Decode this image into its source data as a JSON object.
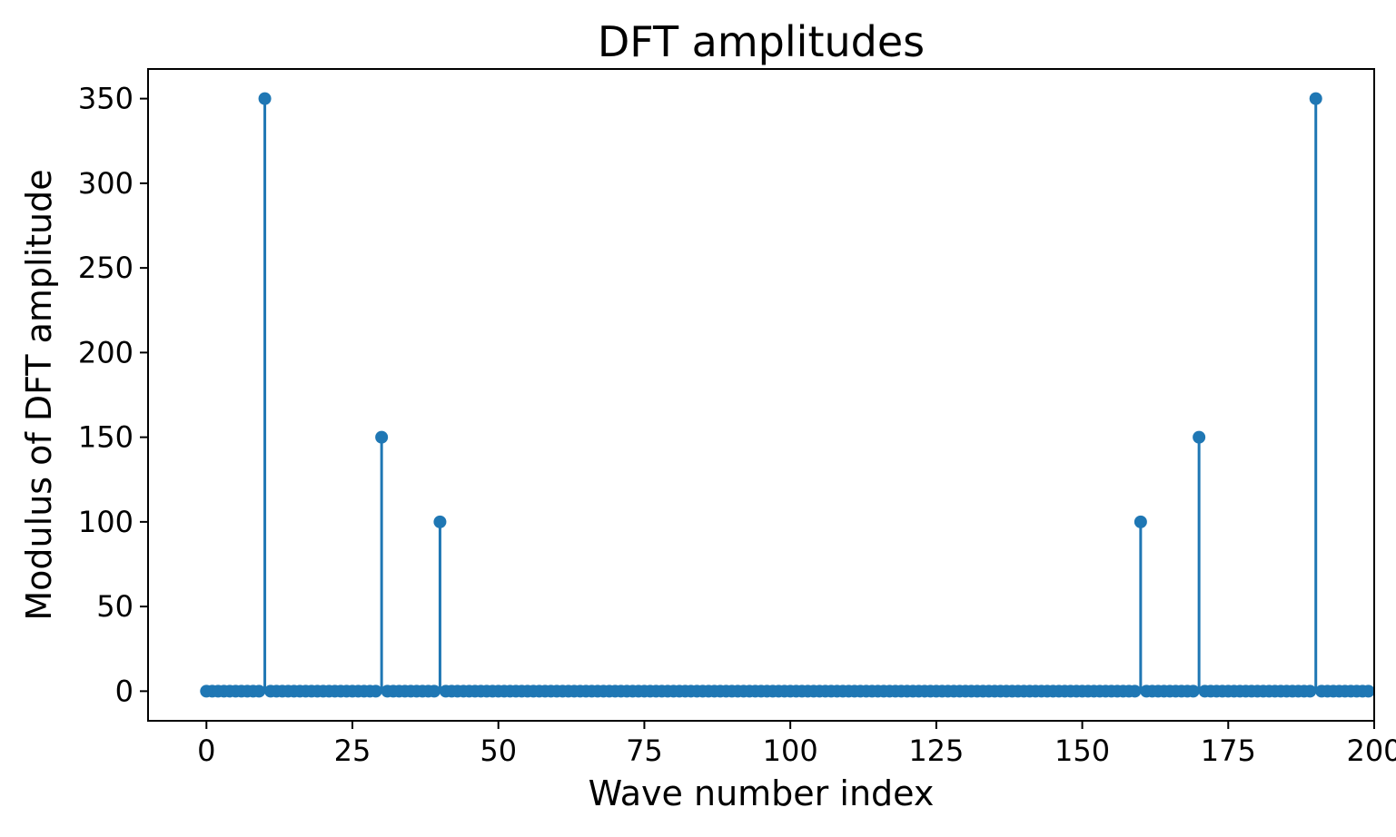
{
  "chart_data": {
    "type": "stem",
    "title": "DFT amplitudes",
    "xlabel": "Wave number index",
    "ylabel": "Modulus of DFT amplitude",
    "xlim": [
      -10,
      200
    ],
    "ylim": [
      -17.5,
      367.5
    ],
    "xticks": [
      0,
      25,
      50,
      75,
      100,
      125,
      150,
      175,
      200
    ],
    "yticks": [
      0,
      50,
      100,
      150,
      200,
      250,
      300,
      350
    ],
    "xtick_labels": [
      "0",
      "25",
      "50",
      "75",
      "100",
      "125",
      "150",
      "175",
      "200"
    ],
    "ytick_labels": [
      "0",
      "50",
      "100",
      "150",
      "200",
      "250",
      "300",
      "350"
    ],
    "n_points": 200,
    "x_start": 0,
    "baseline_value": 0,
    "peaks": [
      {
        "x": 10,
        "y": 350
      },
      {
        "x": 30,
        "y": 150
      },
      {
        "x": 40,
        "y": 100
      },
      {
        "x": 160,
        "y": 100
      },
      {
        "x": 170,
        "y": 150
      },
      {
        "x": 190,
        "y": 350
      }
    ],
    "grid": false,
    "colors": {
      "stem": "#1f77b4",
      "marker": "#1f77b4",
      "baseline": "#d62728"
    }
  }
}
